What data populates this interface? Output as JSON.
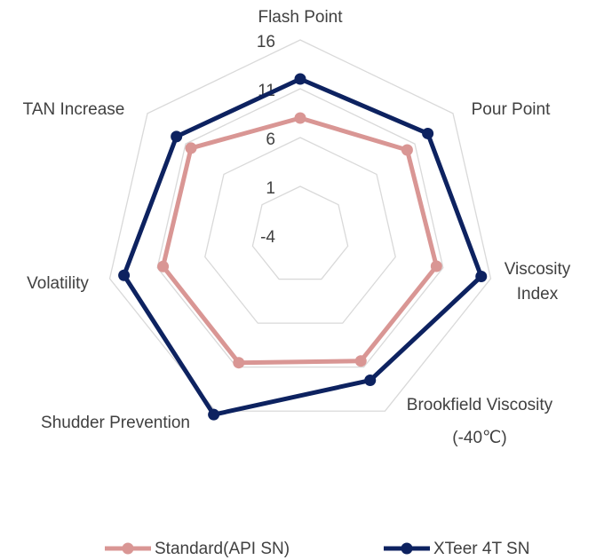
{
  "chart_data": {
    "type": "radar",
    "categories": [
      "Flash Point",
      "Pour Point",
      "Viscosity Index",
      "Brookfield Viscosity (-40℃)",
      "Shudder Prevention",
      "Volatility",
      "TAN Increase"
    ],
    "series": [
      {
        "name": "Standard(API SN)",
        "color": "#d99694",
        "values": [
          8,
          10,
          10.3,
          10.3,
          10.5,
          10.4,
          10.3
        ]
      },
      {
        "name": "XTeer 4T SN",
        "color": "#0d2260",
        "values": [
          12,
          12.7,
          15,
          12.5,
          16.4,
          14.5,
          12.2
        ]
      }
    ],
    "rlim": [
      -4,
      16
    ],
    "rticks": [
      -4,
      1,
      6,
      11,
      16
    ],
    "grid": true,
    "legend": "bottom"
  }
}
